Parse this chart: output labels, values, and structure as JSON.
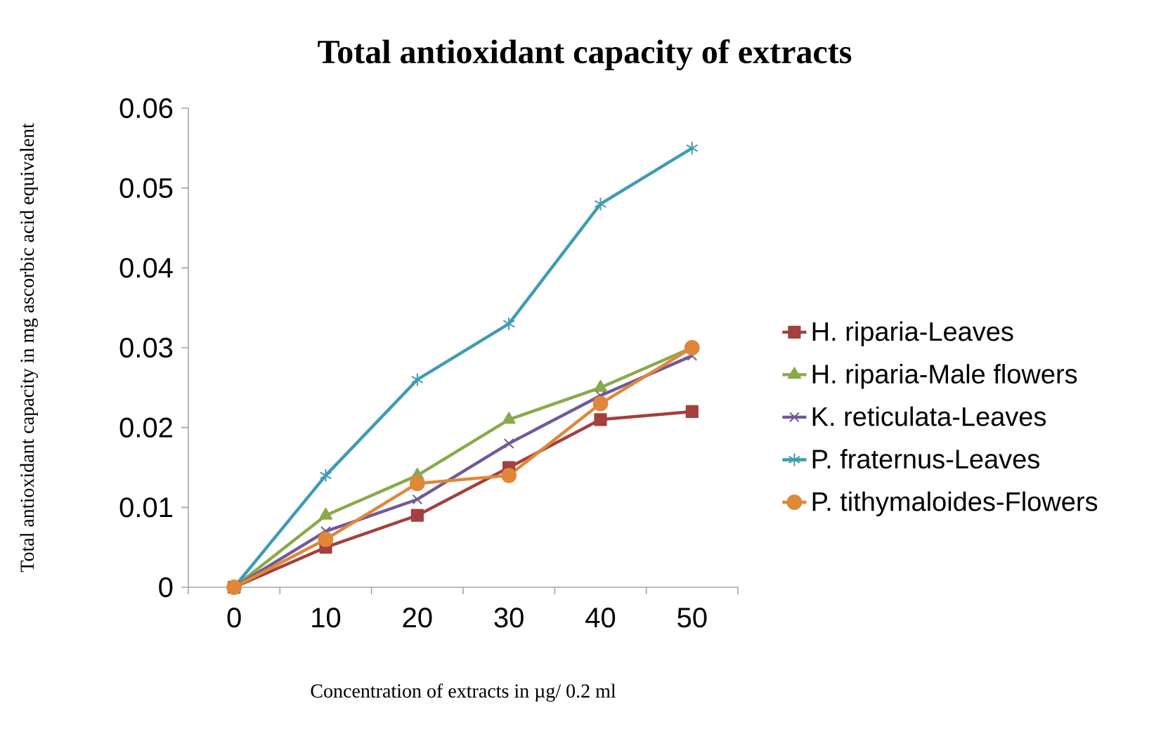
{
  "chart_data": {
    "type": "line",
    "title": "Total antioxidant capacity of extracts",
    "xlabel": "Concentration of extracts in µg/ 0.2 ml",
    "ylabel": "Total antioxidant capacity in mg ascorbic acid equivalent",
    "categories": [
      "0",
      "10",
      "20",
      "30",
      "40",
      "50"
    ],
    "series": [
      {
        "name": "H. riparia-Leaves",
        "color": "#a4403d",
        "marker": "square",
        "values": [
          0,
          0.005,
          0.009,
          0.015,
          0.021,
          0.022
        ]
      },
      {
        "name": "H. riparia-Male flowers",
        "color": "#8aa94a",
        "marker": "triangle",
        "values": [
          0,
          0.009,
          0.014,
          0.021,
          0.025,
          0.03
        ]
      },
      {
        "name": "K. reticulata-Leaves",
        "color": "#71599a",
        "marker": "cross",
        "values": [
          0,
          0.007,
          0.011,
          0.018,
          0.024,
          0.029
        ]
      },
      {
        "name": "P. fraternus-Leaves",
        "color": "#3e9bb5",
        "marker": "cross",
        "values": [
          0,
          0.014,
          0.026,
          0.033,
          0.048,
          0.055
        ]
      },
      {
        "name": "P. tithymaloides-Flowers",
        "color": "#e0873a",
        "marker": "circle",
        "values": [
          0,
          0.006,
          0.013,
          0.014,
          0.023,
          0.03
        ]
      }
    ],
    "ylim": [
      0,
      0.06
    ],
    "yticks": [
      0,
      0.01,
      0.02,
      0.03,
      0.04,
      0.05,
      0.06
    ],
    "grid": false,
    "legend": "right",
    "line_style": "solid"
  }
}
